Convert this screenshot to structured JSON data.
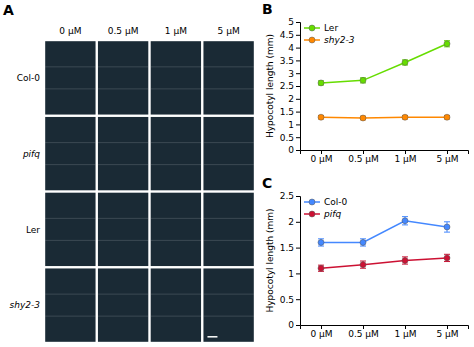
{
  "chart_data": [
    {
      "type": "image_grid",
      "title": "A",
      "categories": [
        "0 μM",
        "0.5 μM",
        "1 μM",
        "5 μM"
      ],
      "rows": [
        "Col-0",
        "pifq",
        "Ler",
        "shy2-3"
      ],
      "color": "#1a2a35"
    },
    {
      "type": "line",
      "title": "B",
      "categories": [
        "0 μM",
        "0.5 μM",
        "1 μM",
        "5 μM"
      ],
      "series": [
        {
          "name": "Ler",
          "color": "#66dd00",
          "marker": "circle",
          "values": [
            2.62,
            2.72,
            3.42,
            4.15
          ],
          "errors": [
            0.08,
            0.1,
            0.1,
            0.12
          ]
        },
        {
          "name": "shy2-3",
          "color": "#ff8800",
          "marker": "circle",
          "values": [
            1.28,
            1.25,
            1.28,
            1.28
          ],
          "errors": [
            0.07,
            0.07,
            0.07,
            0.07
          ]
        }
      ],
      "ylabel": "Hypocotyl length (mm)",
      "ylim": [
        0,
        5
      ],
      "yticks": [
        0,
        0.5,
        1,
        1.5,
        2,
        2.5,
        3,
        3.5,
        4,
        4.5,
        5
      ],
      "grid": false,
      "legend": "upper left"
    },
    {
      "type": "line",
      "title": "C",
      "categories": [
        "0 μM",
        "0.5 μM",
        "1 μM",
        "5 μM"
      ],
      "series": [
        {
          "name": "Col-0",
          "color": "#4488ff",
          "marker": "circle",
          "values": [
            1.6,
            1.6,
            2.02,
            1.9
          ],
          "errors": [
            0.07,
            0.07,
            0.08,
            0.1
          ]
        },
        {
          "name": "pifq",
          "color": "#cc1133",
          "marker": "circle",
          "values": [
            1.1,
            1.17,
            1.25,
            1.3
          ],
          "errors": [
            0.06,
            0.07,
            0.07,
            0.07
          ]
        }
      ],
      "ylabel": "Hypocotyl length (mm)",
      "ylim": [
        0,
        2.5
      ],
      "yticks": [
        0,
        0.5,
        1,
        1.5,
        2,
        2.5
      ],
      "grid": false,
      "legend": "upper left"
    }
  ]
}
